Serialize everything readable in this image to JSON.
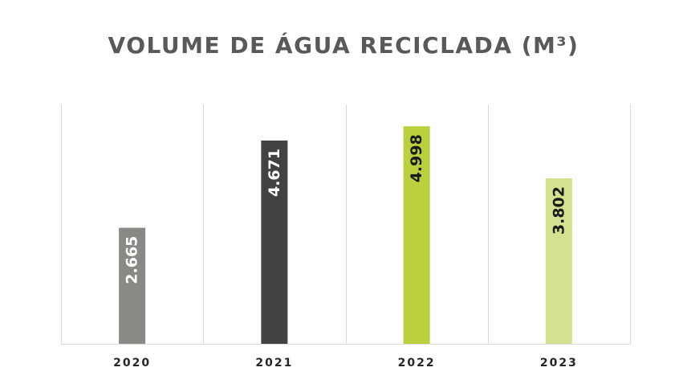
{
  "chart_data": {
    "type": "bar",
    "title": "VOLUME DE ÁGUA RECICLADA (M³)",
    "xlabel": "",
    "ylabel": "",
    "categories": [
      "2020",
      "2021",
      "2022",
      "2023"
    ],
    "values": [
      2665,
      4671,
      4998,
      3802
    ],
    "data_labels": [
      "2.665",
      "4.671",
      "4.998",
      "3.802"
    ],
    "bar_colors": [
      "#8a8986",
      "#434240",
      "#bccf3c",
      "#d5e090"
    ],
    "label_colors": [
      "#ffffff",
      "#ffffff",
      "#1a1a1a",
      "#1a1a1a"
    ],
    "ylim": [
      0,
      5500
    ],
    "grid": "vertical category separators",
    "legend": "none"
  }
}
